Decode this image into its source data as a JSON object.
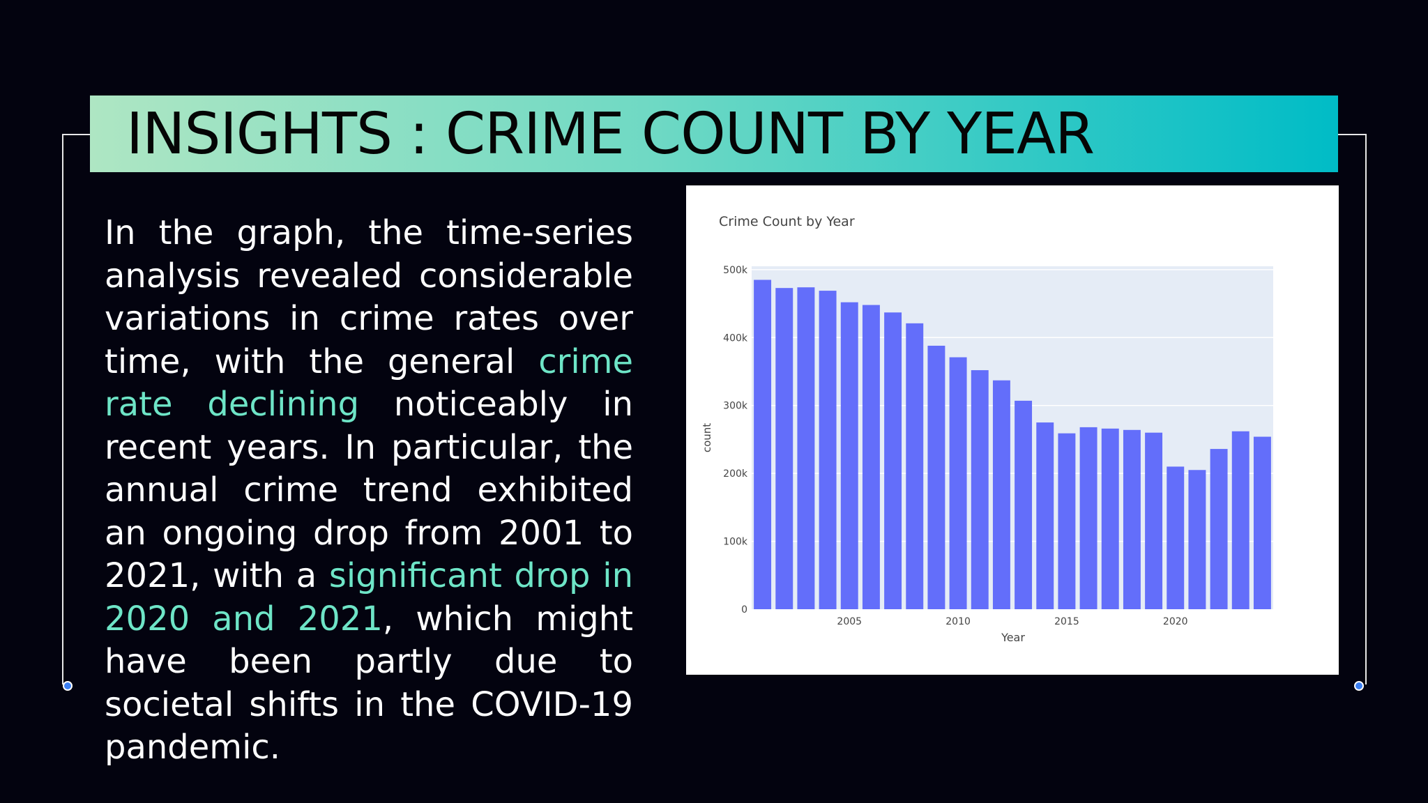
{
  "slide": {
    "title": "INSIGHTS : CRIME COUNT BY YEAR",
    "body": {
      "t1": "In the graph, the time-series analysis revealed  considerable variations in crime rates over time, with the general ",
      "h1": "crime rate declining",
      "t2": " noticeably in recent years. In particular, the annual crime trend exhibited an ongoing drop from 2001 to 2021, with a ",
      "h2": "significant drop in 2020 and 2021",
      "t3": ", which might have been partly due to societal shifts in the COVID-19 pandemic."
    },
    "colors": {
      "background": "#03030f",
      "highlight": "#6ee5c7",
      "title_gradient_start": "#aee6c3",
      "title_gradient_end": "#00bcc6",
      "frame_dot": "#3b7ff2"
    }
  },
  "chart_data": {
    "type": "bar",
    "title": "Crime Count by Year",
    "xlabel": "Year",
    "ylabel": "count",
    "x": [
      2001,
      2002,
      2003,
      2004,
      2005,
      2006,
      2007,
      2008,
      2009,
      2010,
      2011,
      2012,
      2013,
      2014,
      2015,
      2016,
      2017,
      2018,
      2019,
      2020,
      2021,
      2022,
      2023,
      2024
    ],
    "values": [
      485000,
      473000,
      474000,
      469000,
      452000,
      448000,
      437000,
      421000,
      388000,
      371000,
      352000,
      337000,
      307000,
      275000,
      259000,
      268000,
      266000,
      264000,
      260000,
      210000,
      205000,
      236000,
      262000,
      254000
    ],
    "xticks": [
      2005,
      2010,
      2015,
      2020
    ],
    "yticks": [
      0,
      100000,
      200000,
      300000,
      400000,
      500000
    ],
    "ytick_labels": [
      "0",
      "100k",
      "200k",
      "300k",
      "400k",
      "500k"
    ],
    "ylim": [
      0,
      505000
    ],
    "grid": true,
    "bar_color": "#636efa",
    "plot_background": "#e5ecf6"
  }
}
